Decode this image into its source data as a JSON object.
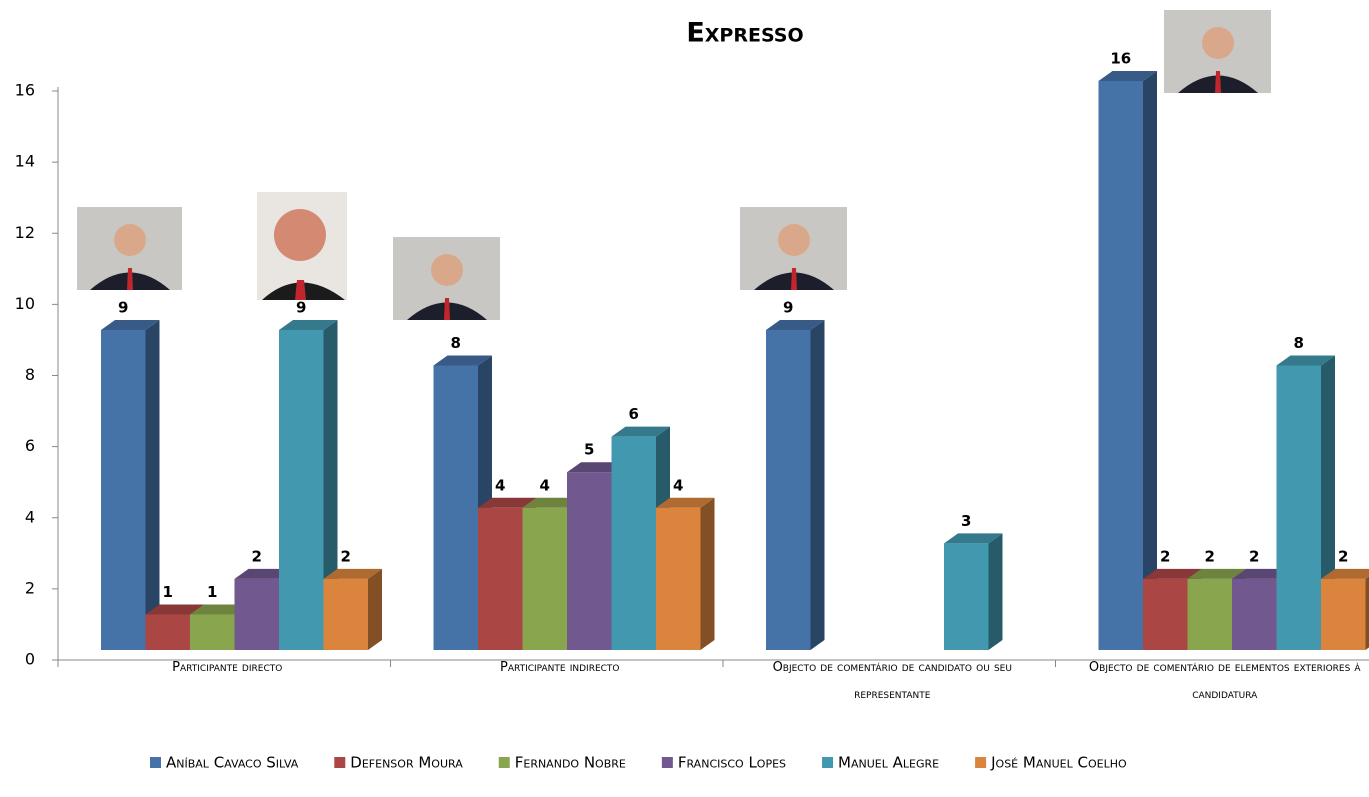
{
  "chart_data": {
    "type": "bar3d",
    "title": "Expresso",
    "categories": [
      "Participante directo",
      "Participante indirecto",
      "Objecto de comentário de candidato ou seu representante",
      "Objecto de comentário de elementos exteriores à candidatura"
    ],
    "series": [
      {
        "name": "Aníbal Cavaco Silva",
        "color": "#4572a7",
        "values": [
          9,
          8,
          9,
          16
        ]
      },
      {
        "name": "Defensor Moura",
        "color": "#aa4643",
        "values": [
          1,
          4,
          null,
          2
        ]
      },
      {
        "name": "Fernando Nobre",
        "color": "#89a54e",
        "values": [
          1,
          4,
          null,
          2
        ]
      },
      {
        "name": "Francisco Lopes",
        "color": "#71588f",
        "values": [
          2,
          5,
          null,
          2
        ]
      },
      {
        "name": "Manuel Alegre",
        "color": "#4198af",
        "values": [
          9,
          6,
          3,
          8
        ]
      },
      {
        "name": "José Manuel Coelho",
        "color": "#db843d",
        "values": [
          2,
          4,
          null,
          2
        ]
      }
    ],
    "ylim": [
      0,
      16
    ],
    "yticks": [
      0,
      2,
      4,
      6,
      8,
      10,
      12,
      14,
      16
    ],
    "legend": "bottom"
  }
}
